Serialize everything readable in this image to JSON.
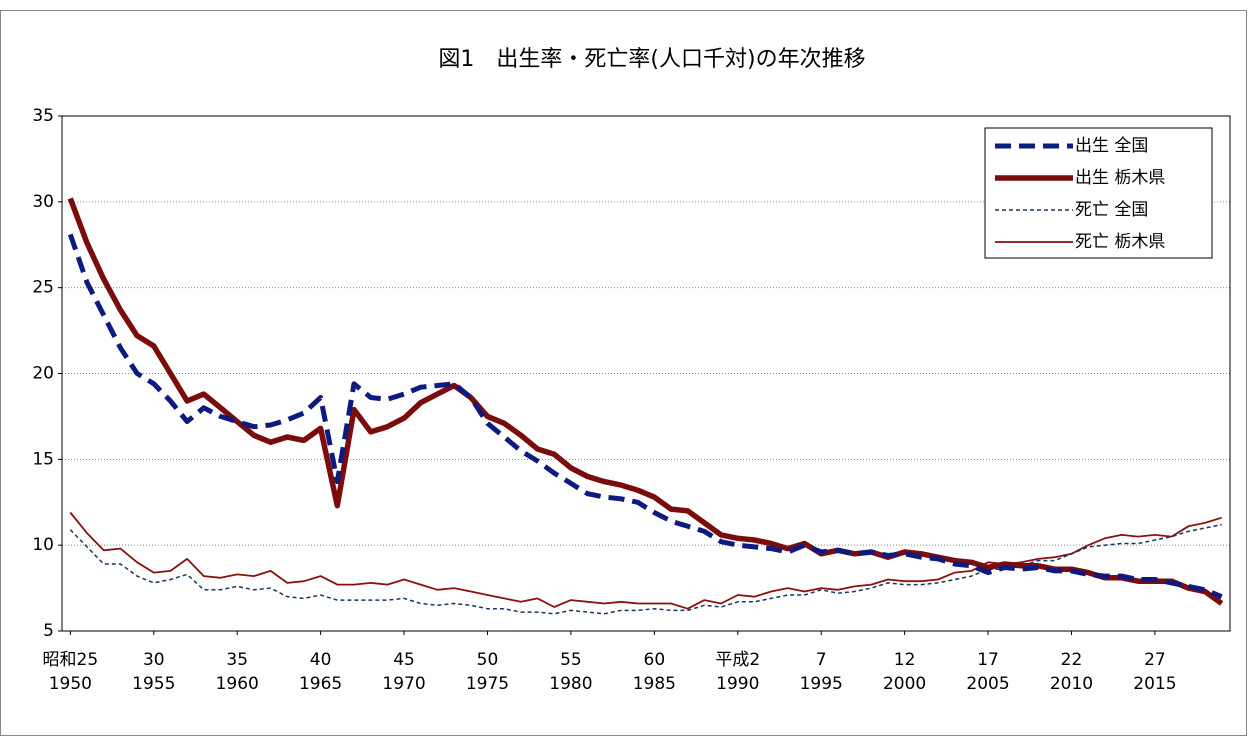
{
  "chart_data": {
    "type": "line",
    "title": "図1　出生率・死亡率(人口千対)の年次推移",
    "x": [
      1950,
      1951,
      1952,
      1953,
      1954,
      1955,
      1956,
      1957,
      1958,
      1959,
      1960,
      1961,
      1962,
      1963,
      1964,
      1965,
      1966,
      1967,
      1968,
      1969,
      1970,
      1971,
      1972,
      1973,
      1974,
      1975,
      1976,
      1977,
      1978,
      1979,
      1980,
      1981,
      1982,
      1983,
      1984,
      1985,
      1986,
      1987,
      1988,
      1989,
      1990,
      1991,
      1992,
      1993,
      1994,
      1995,
      1996,
      1997,
      1998,
      1999,
      2000,
      2001,
      2002,
      2003,
      2004,
      2005,
      2006,
      2007,
      2008,
      2009,
      2010,
      2011,
      2012,
      2013,
      2014,
      2015,
      2016,
      2017,
      2018,
      2019
    ],
    "xlim": [
      1949.5,
      2019.5
    ],
    "xticks": [
      {
        "value": 1950,
        "label": [
          "昭和25",
          "1950"
        ]
      },
      {
        "value": 1955,
        "label": [
          "30",
          "1955"
        ]
      },
      {
        "value": 1960,
        "label": [
          "35",
          "1960"
        ]
      },
      {
        "value": 1965,
        "label": [
          "40",
          "1965"
        ]
      },
      {
        "value": 1970,
        "label": [
          "45",
          "1970"
        ]
      },
      {
        "value": 1975,
        "label": [
          "50",
          "1975"
        ]
      },
      {
        "value": 1980,
        "label": [
          "55",
          "1980"
        ]
      },
      {
        "value": 1985,
        "label": [
          "60",
          "1985"
        ]
      },
      {
        "value": 1990,
        "label": [
          "平成2",
          "1990"
        ]
      },
      {
        "value": 1995,
        "label": [
          "7",
          "1995"
        ]
      },
      {
        "value": 2000,
        "label": [
          "12",
          "2000"
        ]
      },
      {
        "value": 2005,
        "label": [
          "17",
          "2005"
        ]
      },
      {
        "value": 2010,
        "label": [
          "22",
          "2010"
        ]
      },
      {
        "value": 2015,
        "label": [
          "27",
          "2015"
        ]
      }
    ],
    "ylim": [
      5,
      35
    ],
    "yticks": [
      5,
      10,
      15,
      20,
      25,
      30,
      35
    ],
    "grid": true,
    "legend": "top-right",
    "series": [
      {
        "name": "出生 全国",
        "color": "#0d1a80",
        "width": 5,
        "dash": "16 8",
        "values": [
          28.1,
          25.3,
          23.4,
          21.5,
          20.0,
          19.4,
          18.4,
          17.2,
          18.0,
          17.5,
          17.2,
          16.9,
          17.0,
          17.3,
          17.7,
          18.6,
          13.7,
          19.4,
          18.6,
          18.5,
          18.8,
          19.2,
          19.3,
          19.4,
          18.6,
          17.1,
          16.3,
          15.5,
          14.9,
          14.2,
          13.6,
          13.0,
          12.8,
          12.7,
          12.5,
          11.9,
          11.4,
          11.1,
          10.8,
          10.2,
          10.0,
          9.9,
          9.8,
          9.6,
          10.0,
          9.6,
          9.7,
          9.5,
          9.6,
          9.4,
          9.5,
          9.3,
          9.2,
          8.9,
          8.8,
          8.4,
          8.7,
          8.6,
          8.7,
          8.5,
          8.5,
          8.3,
          8.2,
          8.2,
          8.0,
          8.0,
          7.8,
          7.6,
          7.4,
          7.0
        ]
      },
      {
        "name": "出生 栃木県",
        "color": "#7b0c0c",
        "width": 5.5,
        "dash": "none",
        "values": [
          30.2,
          27.6,
          25.5,
          23.7,
          22.2,
          21.6,
          20.0,
          18.4,
          18.8,
          18.0,
          17.2,
          16.4,
          16.0,
          16.3,
          16.1,
          16.8,
          12.3,
          17.9,
          16.6,
          16.9,
          17.4,
          18.3,
          18.8,
          19.3,
          18.6,
          17.5,
          17.1,
          16.4,
          15.6,
          15.3,
          14.5,
          14.0,
          13.7,
          13.5,
          13.2,
          12.8,
          12.1,
          12.0,
          11.3,
          10.6,
          10.4,
          10.3,
          10.1,
          9.8,
          10.1,
          9.5,
          9.7,
          9.5,
          9.6,
          9.3,
          9.6,
          9.5,
          9.3,
          9.1,
          9.0,
          8.7,
          8.9,
          8.8,
          8.8,
          8.6,
          8.6,
          8.4,
          8.1,
          8.1,
          7.9,
          7.9,
          7.9,
          7.5,
          7.3,
          6.6
        ]
      },
      {
        "name": "死亡 全国",
        "color": "#17375e",
        "width": 1.5,
        "dash": "4 3",
        "values": [
          10.9,
          9.9,
          8.9,
          8.9,
          8.2,
          7.8,
          8.0,
          8.3,
          7.4,
          7.4,
          7.6,
          7.4,
          7.5,
          7.0,
          6.9,
          7.1,
          6.8,
          6.8,
          6.8,
          6.8,
          6.9,
          6.6,
          6.5,
          6.6,
          6.5,
          6.3,
          6.3,
          6.1,
          6.1,
          6.0,
          6.2,
          6.1,
          6.0,
          6.2,
          6.2,
          6.3,
          6.2,
          6.2,
          6.5,
          6.4,
          6.7,
          6.7,
          6.9,
          7.1,
          7.1,
          7.4,
          7.2,
          7.3,
          7.5,
          7.8,
          7.7,
          7.7,
          7.8,
          8.0,
          8.2,
          8.6,
          8.6,
          8.8,
          9.1,
          9.1,
          9.5,
          9.9,
          10.0,
          10.1,
          10.1,
          10.3,
          10.5,
          10.8,
          11.0,
          11.2
        ]
      },
      {
        "name": "死亡 栃木県",
        "color": "#8b1010",
        "width": 1.8,
        "dash": "none",
        "values": [
          11.9,
          10.7,
          9.7,
          9.8,
          9.0,
          8.4,
          8.5,
          9.2,
          8.2,
          8.1,
          8.3,
          8.2,
          8.5,
          7.8,
          7.9,
          8.2,
          7.7,
          7.7,
          7.8,
          7.7,
          8.0,
          7.7,
          7.4,
          7.5,
          7.3,
          7.1,
          6.9,
          6.7,
          6.9,
          6.4,
          6.8,
          6.7,
          6.6,
          6.7,
          6.6,
          6.6,
          6.6,
          6.3,
          6.8,
          6.6,
          7.1,
          7.0,
          7.3,
          7.5,
          7.3,
          7.5,
          7.4,
          7.6,
          7.7,
          8.0,
          7.9,
          7.9,
          8.0,
          8.4,
          8.5,
          9.0,
          8.9,
          9.0,
          9.2,
          9.3,
          9.5,
          10.0,
          10.4,
          10.6,
          10.5,
          10.6,
          10.5,
          11.1,
          11.3,
          11.6
        ]
      }
    ]
  }
}
